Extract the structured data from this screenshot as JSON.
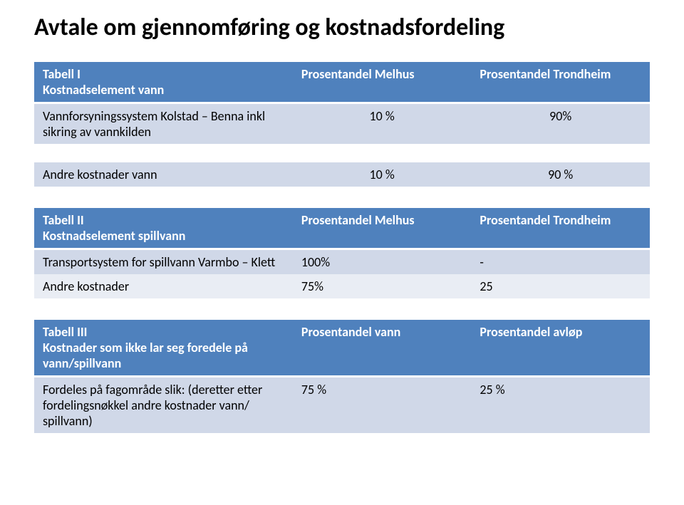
{
  "title": "Avtale om gjennomføring og kostnadsfordeling",
  "colors": {
    "header_bg": "#4f81bd",
    "header_text": "#ffffff",
    "row_bg": "#d0d8e8",
    "row_alt_bg": "#e9edf4",
    "text": "#000000",
    "page_bg": "#ffffff"
  },
  "typography": {
    "title_fontsize": 34,
    "cell_fontsize": 18,
    "title_weight": 700,
    "header_weight": 700
  },
  "table1": {
    "type": "table",
    "columns": [
      "Tabell I\nKostnadselement vann",
      "Prosentandel Melhus",
      "Prosentandel Trondheim"
    ],
    "col_widths_pct": [
      42,
      29,
      29
    ],
    "rows": [
      [
        "Vannforsyningssystem Kolstad – Benna inkl sikring av vannkilden",
        "10 %",
        "90%"
      ]
    ],
    "value_align": [
      "left",
      "center",
      "center"
    ]
  },
  "table2": {
    "type": "table",
    "columns": [
      "Andre kostnader vann",
      "10 %",
      "90 %"
    ],
    "col_widths_pct": [
      42,
      29,
      29
    ],
    "value_align": [
      "left",
      "center",
      "center"
    ]
  },
  "table3": {
    "type": "table",
    "columns": [
      "Tabell II\nKostnadselement spillvann",
      "Prosentandel Melhus",
      "Prosentandel Trondheim"
    ],
    "col_widths_pct": [
      42,
      29,
      29
    ],
    "rows": [
      [
        "Transportsystem for spillvann Varmbo – Klett",
        "100%",
        "-"
      ],
      [
        "Andre kostnader",
        "75%",
        "25"
      ]
    ],
    "value_align": [
      "left",
      "left",
      "left"
    ]
  },
  "table4": {
    "type": "table",
    "columns": [
      "Tabell III\nKostnader som ikke lar seg foredele på vann/spillvann",
      "Prosentandel vann",
      "Prosentandel avløp"
    ],
    "col_widths_pct": [
      42,
      29,
      29
    ],
    "rows": [
      [
        "Fordeles på fagområde slik: (deretter etter fordelingsnøkkel andre kostnader vann/ spillvann)",
        "75 %",
        "25 %"
      ]
    ],
    "value_align": [
      "left",
      "left",
      "left"
    ]
  }
}
